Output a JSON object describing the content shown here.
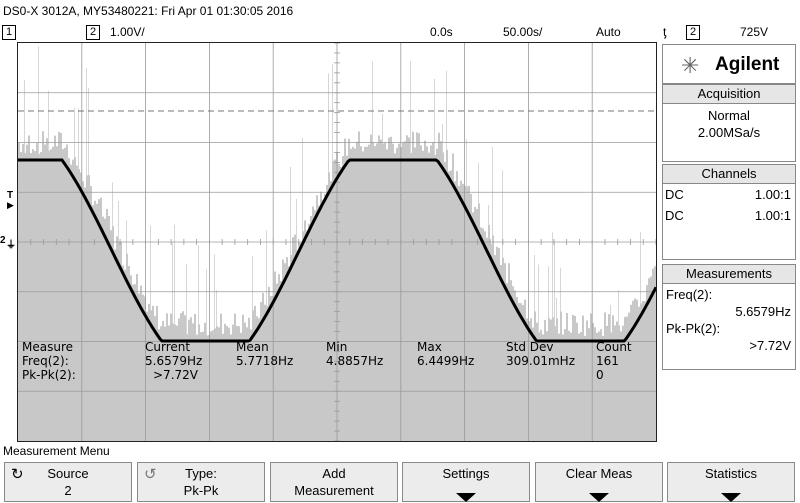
{
  "title": "DS0-X 3012A, MY53480221: Fri Apr 01 01:30:05 2016",
  "status": {
    "ch1_num": "1",
    "ch2_num": "2",
    "ch2_scale": "1.00V/",
    "time_offset": "0.0s",
    "time_scale": "50.00s/",
    "trigger_mode": "Auto",
    "trigger_symbol": "ƫ",
    "trigger_source": "2",
    "trigger_level": "725V"
  },
  "display": {
    "trigger_marker": "T",
    "ch2_marker": "2"
  },
  "measurement_table": {
    "headers": [
      "Measure",
      "Current",
      "Mean",
      "Min",
      "Max",
      "Std Dev",
      "Count"
    ],
    "rows": [
      [
        "Freq(2):",
        "5.6579Hz",
        "5.7718Hz",
        "4.8857Hz",
        "6.4499Hz",
        "309.01mHz",
        "161"
      ],
      [
        "Pk-Pk(2):",
        ">7.72V",
        "",
        "",
        "",
        "",
        "0"
      ]
    ]
  },
  "side_panel": {
    "brand": "Agilent",
    "acquisition": {
      "header": "Acquisition",
      "mode": "Normal",
      "rate": "2.00MSa/s"
    },
    "channels": {
      "header": "Channels",
      "rows": [
        {
          "coupling": "DC",
          "ratio": "1.00:1"
        },
        {
          "coupling": "DC",
          "ratio": "1.00:1"
        }
      ]
    },
    "measurements": {
      "header": "Measurements",
      "items": [
        {
          "label": "Freq(2):",
          "value": "5.6579Hz"
        },
        {
          "label": "Pk-Pk(2):",
          "value": ">7.72V"
        }
      ]
    }
  },
  "menu": {
    "label": "Measurement Menu",
    "softkeys": [
      {
        "line1": "Source",
        "line2": "2"
      },
      {
        "line1": "Type:",
        "line2": "Pk-Pk"
      },
      {
        "line1": "Add",
        "line2": "Measurement"
      },
      {
        "line1": "Settings",
        "line2": ""
      },
      {
        "line1": "Clear Meas",
        "line2": ""
      },
      {
        "line1": "Statistics",
        "line2": ""
      }
    ]
  },
  "colors": {
    "trace": "#000000",
    "persistence": "#c8c8c8",
    "grid": "#9a9a9a"
  }
}
